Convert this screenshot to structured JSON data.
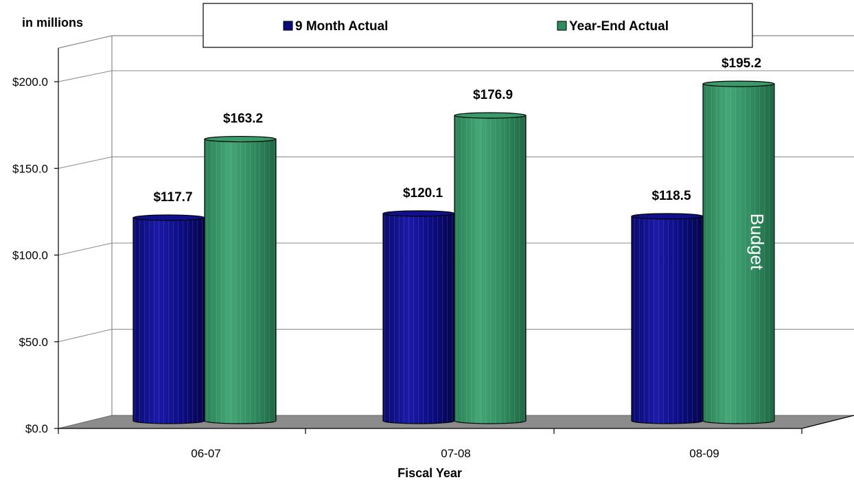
{
  "chart_data": {
    "type": "bar",
    "unit_label": "in millions",
    "xlabel": "Fiscal Year",
    "ylabel": "",
    "categories": [
      "06-07",
      "07-08",
      "08-09"
    ],
    "ylim": [
      0,
      200
    ],
    "y_ticks": [
      0,
      50,
      100,
      150,
      200
    ],
    "y_tick_labels": [
      "$0.0",
      "$50.0",
      "$100.0",
      "$150.0",
      "$200.0"
    ],
    "series": [
      {
        "name": "9 Month Actual",
        "values": [
          117.7,
          120.1,
          118.5
        ],
        "labels": [
          "$117.7",
          "$120.1",
          "$118.5"
        ],
        "color": "#0b0b7a"
      },
      {
        "name": "Year-End Actual",
        "values": [
          163.2,
          176.9,
          195.2
        ],
        "labels": [
          "$163.2",
          "$176.9",
          "$195.2"
        ],
        "color": "#2e8b5e"
      }
    ],
    "annotation": {
      "text": "Budget",
      "series": 1,
      "category": 2
    },
    "legend_position": "top",
    "grid": true
  }
}
